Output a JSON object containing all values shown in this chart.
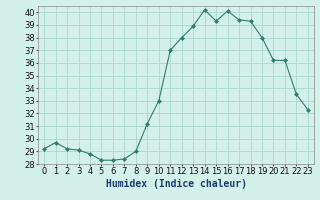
{
  "x": [
    0,
    1,
    2,
    3,
    4,
    5,
    6,
    7,
    8,
    9,
    10,
    11,
    12,
    13,
    14,
    15,
    16,
    17,
    18,
    19,
    20,
    21,
    22,
    23
  ],
  "y": [
    29.2,
    29.7,
    29.2,
    29.1,
    28.8,
    28.3,
    28.3,
    28.4,
    29.0,
    31.2,
    33.0,
    37.0,
    38.0,
    38.9,
    40.2,
    39.3,
    40.1,
    39.4,
    39.3,
    38.0,
    36.2,
    36.2,
    33.5,
    32.3
  ],
  "line_color": "#2e7d6e",
  "marker": "D",
  "marker_size": 2,
  "bg_color": "#d4f0eb",
  "grid_color": "#a8d8d0",
  "xlabel": "Humidex (Indice chaleur)",
  "ylim": [
    28,
    40.5
  ],
  "xlim": [
    -0.5,
    23.5
  ],
  "yticks": [
    28,
    29,
    30,
    31,
    32,
    33,
    34,
    35,
    36,
    37,
    38,
    39,
    40
  ],
  "xticks": [
    0,
    1,
    2,
    3,
    4,
    5,
    6,
    7,
    8,
    9,
    10,
    11,
    12,
    13,
    14,
    15,
    16,
    17,
    18,
    19,
    20,
    21,
    22,
    23
  ],
  "tick_fontsize": 6,
  "xlabel_fontsize": 7
}
